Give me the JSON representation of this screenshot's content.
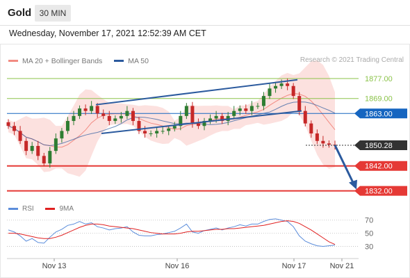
{
  "header": {
    "symbol": "Gold",
    "timeframe": "30 MIN",
    "timestamp": "Wednesday, November 17, 2021 12:52:39 AM CET"
  },
  "legend": {
    "bollinger": {
      "label": "MA 20 + Bollinger Bands",
      "color": "#f28b82"
    },
    "ma50": {
      "label": "MA 50",
      "color": "#2b5a9e"
    }
  },
  "copyright": "Research © 2021 Trading Central",
  "rsi_legend": {
    "rsi": {
      "label": "RSI",
      "color": "#5b8ddb"
    },
    "ma9": {
      "label": "9MA",
      "color": "#e02020"
    }
  },
  "colors": {
    "resistance": "#8bc34a",
    "pivot": "#1565c0",
    "support": "#e53935",
    "last": "#333333",
    "candle_up": "#2e7d32",
    "candle_down": "#c62828",
    "channel": "#2b5a9e",
    "band_fill": "#fbd7d4"
  },
  "chart_data": [
    {
      "type": "candlestick",
      "title": "Gold 30 MIN",
      "x_tick_labels": [
        "Nov 13",
        "Nov 16",
        "Nov 17",
        "Nov 21"
      ],
      "ylim": [
        1828,
        1882
      ],
      "levels": [
        {
          "value": 1877.0,
          "label": "1877.00",
          "kind": "resistance"
        },
        {
          "value": 1869.0,
          "label": "1869.00",
          "kind": "resistance"
        },
        {
          "value": 1863.0,
          "label": "1863.00",
          "kind": "pivot"
        },
        {
          "value": 1850.28,
          "label": "1850.28",
          "kind": "last"
        },
        {
          "value": 1842.0,
          "label": "1842.00",
          "kind": "support"
        },
        {
          "value": 1832.0,
          "label": "1832.00",
          "kind": "support"
        }
      ],
      "last_price": 1850.28,
      "close_series": [
        1858,
        1856,
        1852,
        1848,
        1850,
        1846,
        1843,
        1848,
        1853,
        1856,
        1860,
        1862,
        1865,
        1864,
        1866,
        1863,
        1862,
        1860,
        1861,
        1862,
        1864,
        1860,
        1856,
        1855,
        1855,
        1856,
        1856,
        1857,
        1858,
        1862,
        1866,
        1859,
        1858,
        1860,
        1861,
        1862,
        1860,
        1862,
        1864,
        1865,
        1864,
        1866,
        1866,
        1870,
        1873,
        1874,
        1875,
        1874,
        1870,
        1864,
        1859,
        1855,
        1852,
        1851,
        1850.5,
        1850.28
      ],
      "projection": {
        "from": 1850.28,
        "to": 1832.0
      }
    },
    {
      "type": "line",
      "title": "RSI",
      "ylim": [
        20,
        75
      ],
      "y_ticks": [
        70,
        50,
        30
      ],
      "series": [
        {
          "name": "RSI",
          "values": [
            55,
            52,
            46,
            38,
            42,
            36,
            35,
            44,
            52,
            56,
            62,
            64,
            68,
            64,
            66,
            60,
            58,
            55,
            57,
            58,
            60,
            52,
            47,
            46,
            46,
            48,
            49,
            51,
            53,
            58,
            64,
            52,
            50,
            54,
            56,
            58,
            55,
            58,
            60,
            63,
            61,
            64,
            64,
            68,
            71,
            72,
            70,
            68,
            60,
            46,
            38,
            34,
            31,
            30,
            31,
            32
          ]
        },
        {
          "name": "9MA",
          "values": [
            50,
            50,
            49,
            47,
            45,
            43,
            42,
            42,
            44,
            47,
            51,
            55,
            59,
            62,
            64,
            64,
            63,
            61,
            60,
            59,
            58,
            57,
            55,
            53,
            51,
            50,
            49,
            49,
            49,
            50,
            52,
            53,
            53,
            54,
            55,
            56,
            56,
            57,
            57,
            58,
            59,
            60,
            61,
            62,
            64,
            66,
            68,
            69,
            68,
            65,
            60,
            55,
            49,
            43,
            37,
            33
          ]
        }
      ]
    }
  ]
}
